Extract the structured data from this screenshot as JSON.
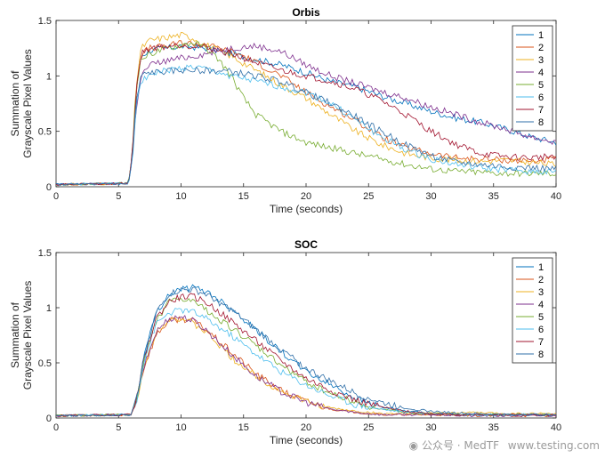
{
  "chart_data": [
    {
      "type": "line",
      "title": "Orbis",
      "xlabel": "Time (seconds)",
      "ylabel_lines": [
        "Summation of",
        "Grayscale Pixel Values"
      ],
      "xlim": [
        0,
        40
      ],
      "ylim": [
        0,
        1.5
      ],
      "xticks": [
        "0",
        "5",
        "10",
        "15",
        "20",
        "25",
        "30",
        "35",
        "40"
      ],
      "yticks": [
        "0",
        "0.5",
        "1",
        "1.5"
      ],
      "legend_position": "top-right",
      "series": [
        {
          "name": "1",
          "color": "#0072BD",
          "x": [
            0,
            5.8,
            6.1,
            6.4,
            6.8,
            7.5,
            9,
            10,
            12,
            14,
            16,
            18,
            20,
            22,
            24,
            26,
            28,
            30,
            32,
            34,
            36,
            38,
            40
          ],
          "y": [
            0.02,
            0.03,
            0.3,
            0.85,
            1.18,
            1.23,
            1.25,
            1.27,
            1.25,
            1.2,
            1.15,
            1.1,
            1.03,
            0.95,
            0.9,
            0.82,
            0.75,
            0.68,
            0.62,
            0.58,
            0.52,
            0.45,
            0.4
          ]
        },
        {
          "name": "2",
          "color": "#D95319",
          "x": [
            0,
            5.8,
            6.1,
            6.4,
            6.8,
            7.5,
            9,
            10,
            12,
            14,
            15,
            16,
            18,
            20,
            22,
            24,
            26,
            28,
            30,
            32,
            34,
            36,
            38,
            40
          ],
          "y": [
            0.02,
            0.03,
            0.3,
            0.85,
            1.2,
            1.25,
            1.27,
            1.3,
            1.28,
            1.22,
            1.18,
            1.12,
            1.0,
            0.85,
            0.72,
            0.6,
            0.45,
            0.35,
            0.3,
            0.26,
            0.25,
            0.24,
            0.23,
            0.25
          ]
        },
        {
          "name": "3",
          "color": "#EDB120",
          "x": [
            0,
            5.8,
            6.1,
            6.4,
            6.8,
            7.5,
            9,
            10,
            11,
            12,
            14,
            16,
            18,
            20,
            22,
            24,
            26,
            28,
            30,
            32,
            34,
            36,
            38,
            40
          ],
          "y": [
            0.02,
            0.03,
            0.3,
            0.9,
            1.25,
            1.32,
            1.35,
            1.37,
            1.34,
            1.28,
            1.18,
            1.05,
            0.92,
            0.8,
            0.65,
            0.5,
            0.38,
            0.3,
            0.26,
            0.24,
            0.23,
            0.24,
            0.22,
            0.2
          ]
        },
        {
          "name": "4",
          "color": "#7E2F8E",
          "x": [
            0,
            5.8,
            6.1,
            6.4,
            6.8,
            7.5,
            9,
            10,
            12,
            14,
            16,
            18,
            20,
            22,
            24,
            26,
            28,
            30,
            32,
            34,
            36,
            38,
            40
          ],
          "y": [
            0.02,
            0.03,
            0.25,
            0.7,
            1.0,
            1.1,
            1.14,
            1.16,
            1.2,
            1.25,
            1.27,
            1.22,
            1.1,
            1.0,
            0.93,
            0.86,
            0.8,
            0.72,
            0.65,
            0.58,
            0.52,
            0.45,
            0.4
          ]
        },
        {
          "name": "5",
          "color": "#77AC30",
          "x": [
            0,
            5.8,
            6.1,
            6.4,
            6.8,
            7.5,
            9,
            10,
            11,
            12,
            13,
            14,
            15,
            16,
            18,
            20,
            22,
            24,
            26,
            28,
            30,
            32,
            34,
            36,
            38,
            40
          ],
          "y": [
            0.02,
            0.03,
            0.3,
            0.9,
            1.15,
            1.2,
            1.25,
            1.28,
            1.3,
            1.25,
            1.15,
            1.0,
            0.8,
            0.65,
            0.5,
            0.4,
            0.35,
            0.3,
            0.25,
            0.2,
            0.16,
            0.14,
            0.13,
            0.12,
            0.12,
            0.12
          ]
        },
        {
          "name": "6",
          "color": "#4DBEEE",
          "x": [
            0,
            5.8,
            6.1,
            6.4,
            6.8,
            7.5,
            9,
            10,
            11,
            12,
            14,
            16,
            18,
            20,
            22,
            24,
            26,
            28,
            30,
            32,
            34,
            36,
            38,
            40
          ],
          "y": [
            0.02,
            0.03,
            0.25,
            0.7,
            0.95,
            1.02,
            1.05,
            1.07,
            1.08,
            1.06,
            1.0,
            0.95,
            0.9,
            0.85,
            0.75,
            0.6,
            0.45,
            0.33,
            0.25,
            0.2,
            0.17,
            0.15,
            0.14,
            0.13
          ]
        },
        {
          "name": "7",
          "color": "#A2142F",
          "x": [
            0,
            5.8,
            6.1,
            6.4,
            6.8,
            7.5,
            9,
            10,
            12,
            14,
            16,
            18,
            20,
            22,
            24,
            26,
            28,
            30,
            32,
            34,
            36,
            38,
            40
          ],
          "y": [
            0.02,
            0.03,
            0.3,
            0.85,
            1.2,
            1.25,
            1.27,
            1.28,
            1.26,
            1.2,
            1.12,
            1.05,
            1.0,
            0.95,
            0.88,
            0.78,
            0.65,
            0.5,
            0.38,
            0.3,
            0.27,
            0.26,
            0.28
          ]
        },
        {
          "name": "8",
          "color": "#2F6FA8",
          "x": [
            0,
            5.8,
            6.1,
            6.4,
            6.8,
            7.5,
            9,
            10,
            12,
            14,
            16,
            18,
            20,
            22,
            24,
            26,
            28,
            30,
            32,
            34,
            36,
            38,
            40
          ],
          "y": [
            0.02,
            0.03,
            0.25,
            0.75,
            1.0,
            1.03,
            1.04,
            1.05,
            1.05,
            1.04,
            1.0,
            0.95,
            0.85,
            0.75,
            0.63,
            0.5,
            0.38,
            0.28,
            0.22,
            0.2,
            0.18,
            0.17,
            0.16
          ]
        }
      ]
    },
    {
      "type": "line",
      "title": "SOC",
      "xlabel": "Time (seconds)",
      "ylabel_lines": [
        "Summation of",
        "Grayscale Pixel Values"
      ],
      "xlim": [
        0,
        40
      ],
      "ylim": [
        0,
        1.5
      ],
      "xticks": [
        "0",
        "5",
        "10",
        "15",
        "20",
        "25",
        "30",
        "35",
        "40"
      ],
      "yticks": [
        "0",
        "0.5",
        "1",
        "1.5"
      ],
      "legend_position": "top-right",
      "series": [
        {
          "name": "1",
          "color": "#0072BD",
          "x": [
            0,
            6,
            6.5,
            7,
            8,
            9,
            10,
            11,
            12,
            14,
            16,
            18,
            20,
            22,
            24,
            26,
            28,
            30,
            33,
            36,
            40
          ],
          "y": [
            0.02,
            0.03,
            0.2,
            0.55,
            0.95,
            1.12,
            1.17,
            1.18,
            1.15,
            1.0,
            0.8,
            0.6,
            0.42,
            0.3,
            0.18,
            0.1,
            0.06,
            0.04,
            0.03,
            0.03,
            0.03
          ]
        },
        {
          "name": "2",
          "color": "#D95319",
          "x": [
            0,
            6,
            6.5,
            7,
            8,
            9,
            10,
            11,
            12,
            14,
            16,
            18,
            20,
            22,
            24,
            26,
            28,
            30,
            33,
            36,
            40
          ],
          "y": [
            0.02,
            0.03,
            0.18,
            0.45,
            0.75,
            0.88,
            0.9,
            0.88,
            0.8,
            0.6,
            0.4,
            0.25,
            0.15,
            0.08,
            0.05,
            0.03,
            0.03,
            0.03,
            0.02,
            0.02,
            0.02
          ]
        },
        {
          "name": "3",
          "color": "#EDB120",
          "x": [
            0,
            6,
            6.5,
            7,
            8,
            9,
            10,
            11,
            12,
            14,
            16,
            18,
            20,
            22,
            24,
            26,
            28,
            30,
            33,
            36,
            40
          ],
          "y": [
            0.02,
            0.03,
            0.18,
            0.45,
            0.78,
            0.9,
            0.9,
            0.85,
            0.78,
            0.55,
            0.38,
            0.24,
            0.15,
            0.09,
            0.06,
            0.04,
            0.04,
            0.04,
            0.05,
            0.04,
            0.04
          ]
        },
        {
          "name": "4",
          "color": "#7E2F8E",
          "x": [
            0,
            6,
            6.5,
            7,
            8,
            9,
            10,
            11,
            12,
            14,
            16,
            18,
            20,
            22,
            24,
            26,
            28,
            30,
            33,
            36,
            40
          ],
          "y": [
            0.02,
            0.03,
            0.18,
            0.45,
            0.78,
            0.9,
            0.92,
            0.88,
            0.8,
            0.58,
            0.38,
            0.24,
            0.14,
            0.08,
            0.05,
            0.03,
            0.03,
            0.03,
            0.02,
            0.02,
            0.02
          ]
        },
        {
          "name": "5",
          "color": "#77AC30",
          "x": [
            0,
            6,
            6.5,
            7,
            8,
            9,
            10,
            11,
            12,
            14,
            16,
            18,
            20,
            22,
            24,
            26,
            28,
            30,
            33,
            36,
            40
          ],
          "y": [
            0.02,
            0.03,
            0.2,
            0.5,
            0.88,
            1.05,
            1.08,
            1.05,
            0.98,
            0.82,
            0.65,
            0.48,
            0.33,
            0.22,
            0.14,
            0.08,
            0.05,
            0.04,
            0.03,
            0.03,
            0.03
          ]
        },
        {
          "name": "6",
          "color": "#4DBEEE",
          "x": [
            0,
            6,
            6.5,
            7,
            8,
            9,
            10,
            11,
            12,
            14,
            16,
            18,
            20,
            22,
            24,
            26,
            28,
            30,
            33,
            36,
            40
          ],
          "y": [
            0.02,
            0.03,
            0.18,
            0.5,
            0.85,
            0.95,
            0.98,
            0.96,
            0.9,
            0.75,
            0.58,
            0.42,
            0.3,
            0.2,
            0.12,
            0.08,
            0.05,
            0.04,
            0.03,
            0.03,
            0.03
          ]
        },
        {
          "name": "7",
          "color": "#A2142F",
          "x": [
            0,
            6,
            6.5,
            7,
            8,
            9,
            10,
            11,
            12,
            14,
            16,
            18,
            20,
            22,
            24,
            26,
            28,
            30,
            33,
            36,
            40
          ],
          "y": [
            0.02,
            0.03,
            0.2,
            0.52,
            0.9,
            1.05,
            1.1,
            1.1,
            1.05,
            0.88,
            0.7,
            0.52,
            0.36,
            0.25,
            0.16,
            0.1,
            0.06,
            0.04,
            0.03,
            0.03,
            0.03
          ]
        },
        {
          "name": "8",
          "color": "#2F6FA8",
          "x": [
            0,
            6,
            6.5,
            7,
            8,
            9,
            10,
            11,
            12,
            14,
            16,
            18,
            20,
            22,
            24,
            26,
            28,
            30,
            33,
            36,
            40
          ],
          "y": [
            0.02,
            0.03,
            0.2,
            0.55,
            0.95,
            1.12,
            1.16,
            1.16,
            1.12,
            0.98,
            0.8,
            0.62,
            0.45,
            0.33,
            0.22,
            0.14,
            0.09,
            0.06,
            0.04,
            0.03,
            0.03
          ]
        }
      ]
    }
  ],
  "watermark": {
    "icon": "wechat-icon",
    "label": "公众号 · MedTF",
    "site": "www.testing.com"
  }
}
